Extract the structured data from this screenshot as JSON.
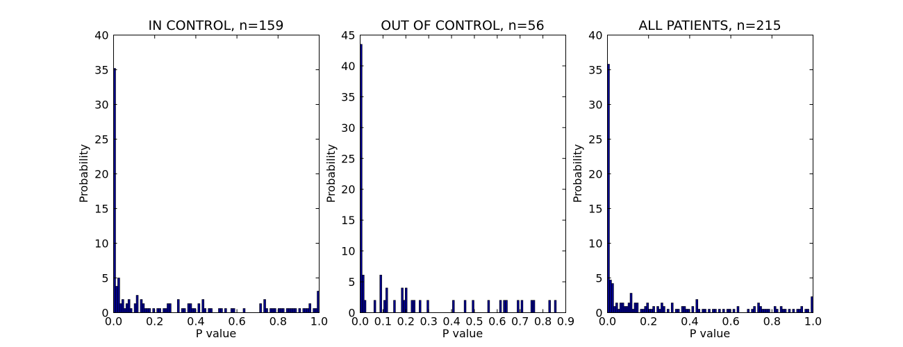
{
  "chart_data": [
    {
      "type": "bar",
      "title": "IN CONTROL, n=159",
      "xlabel": "P value",
      "ylabel": "Probability",
      "xlim": [
        0,
        1.0
      ],
      "ylim": [
        0,
        40
      ],
      "xticks": [
        "0.0",
        "0.2",
        "0.4",
        "0.6",
        "0.8",
        "1.0"
      ],
      "yticks": [
        "0",
        "5",
        "10",
        "15",
        "20",
        "25",
        "30",
        "35",
        "40"
      ],
      "bar_color": "#00008b",
      "bin_width": 0.01,
      "bins": [
        {
          "x": 0.0,
          "y": 35.2
        },
        {
          "x": 0.01,
          "y": 3.8
        },
        {
          "x": 0.02,
          "y": 5.0
        },
        {
          "x": 0.03,
          "y": 1.3
        },
        {
          "x": 0.04,
          "y": 1.9
        },
        {
          "x": 0.05,
          "y": 0.6
        },
        {
          "x": 0.06,
          "y": 1.3
        },
        {
          "x": 0.07,
          "y": 1.9
        },
        {
          "x": 0.08,
          "y": 0.6
        },
        {
          "x": 0.1,
          "y": 1.3
        },
        {
          "x": 0.11,
          "y": 2.5
        },
        {
          "x": 0.13,
          "y": 1.9
        },
        {
          "x": 0.14,
          "y": 1.3
        },
        {
          "x": 0.15,
          "y": 0.6
        },
        {
          "x": 0.16,
          "y": 0.6
        },
        {
          "x": 0.17,
          "y": 0.6
        },
        {
          "x": 0.19,
          "y": 0.6
        },
        {
          "x": 0.21,
          "y": 0.6
        },
        {
          "x": 0.22,
          "y": 0.6
        },
        {
          "x": 0.24,
          "y": 0.6
        },
        {
          "x": 0.25,
          "y": 0.6
        },
        {
          "x": 0.26,
          "y": 1.3
        },
        {
          "x": 0.27,
          "y": 1.3
        },
        {
          "x": 0.31,
          "y": 1.9
        },
        {
          "x": 0.33,
          "y": 0.6
        },
        {
          "x": 0.34,
          "y": 0.6
        },
        {
          "x": 0.36,
          "y": 1.3
        },
        {
          "x": 0.37,
          "y": 1.3
        },
        {
          "x": 0.38,
          "y": 0.6
        },
        {
          "x": 0.39,
          "y": 0.6
        },
        {
          "x": 0.41,
          "y": 1.3
        },
        {
          "x": 0.43,
          "y": 1.9
        },
        {
          "x": 0.44,
          "y": 0.6
        },
        {
          "x": 0.46,
          "y": 0.6
        },
        {
          "x": 0.47,
          "y": 0.6
        },
        {
          "x": 0.51,
          "y": 0.6
        },
        {
          "x": 0.52,
          "y": 0.6
        },
        {
          "x": 0.54,
          "y": 0.6
        },
        {
          "x": 0.57,
          "y": 0.6
        },
        {
          "x": 0.58,
          "y": 0.6
        },
        {
          "x": 0.63,
          "y": 0.6
        },
        {
          "x": 0.71,
          "y": 1.3
        },
        {
          "x": 0.73,
          "y": 1.9
        },
        {
          "x": 0.74,
          "y": 0.6
        },
        {
          "x": 0.76,
          "y": 0.6
        },
        {
          "x": 0.77,
          "y": 0.6
        },
        {
          "x": 0.78,
          "y": 0.6
        },
        {
          "x": 0.8,
          "y": 0.6
        },
        {
          "x": 0.81,
          "y": 0.6
        },
        {
          "x": 0.82,
          "y": 0.6
        },
        {
          "x": 0.84,
          "y": 0.6
        },
        {
          "x": 0.85,
          "y": 0.6
        },
        {
          "x": 0.86,
          "y": 0.6
        },
        {
          "x": 0.87,
          "y": 0.6
        },
        {
          "x": 0.88,
          "y": 0.6
        },
        {
          "x": 0.9,
          "y": 0.6
        },
        {
          "x": 0.92,
          "y": 0.6
        },
        {
          "x": 0.93,
          "y": 0.6
        },
        {
          "x": 0.94,
          "y": 0.6
        },
        {
          "x": 0.95,
          "y": 1.3
        },
        {
          "x": 0.97,
          "y": 0.6
        },
        {
          "x": 0.98,
          "y": 0.6
        },
        {
          "x": 0.99,
          "y": 3.1
        }
      ]
    },
    {
      "type": "bar",
      "title": "OUT OF CONTROL, n=56",
      "xlabel": "P value",
      "ylabel": "Probability",
      "xlim": [
        0,
        0.9
      ],
      "ylim": [
        0,
        45
      ],
      "xticks": [
        "0.0",
        "0.1",
        "0.2",
        "0.3",
        "0.4",
        "0.5",
        "0.6",
        "0.7",
        "0.8",
        "0.9"
      ],
      "yticks": [
        "0",
        "5",
        "10",
        "15",
        "20",
        "25",
        "30",
        "35",
        "40",
        "45"
      ],
      "bar_color": "#00008b",
      "bin_width": 0.0086,
      "bins": [
        {
          "x": 0.0,
          "y": 43.5
        },
        {
          "x": 0.009,
          "y": 6.1
        },
        {
          "x": 0.017,
          "y": 2.0
        },
        {
          "x": 0.06,
          "y": 2.0
        },
        {
          "x": 0.086,
          "y": 6.1
        },
        {
          "x": 0.103,
          "y": 2.0
        },
        {
          "x": 0.112,
          "y": 4.0
        },
        {
          "x": 0.146,
          "y": 2.0
        },
        {
          "x": 0.18,
          "y": 4.0
        },
        {
          "x": 0.189,
          "y": 2.0
        },
        {
          "x": 0.197,
          "y": 4.0
        },
        {
          "x": 0.223,
          "y": 2.0
        },
        {
          "x": 0.232,
          "y": 2.0
        },
        {
          "x": 0.258,
          "y": 2.0
        },
        {
          "x": 0.292,
          "y": 2.0
        },
        {
          "x": 0.404,
          "y": 2.0
        },
        {
          "x": 0.455,
          "y": 2.0
        },
        {
          "x": 0.49,
          "y": 2.0
        },
        {
          "x": 0.558,
          "y": 2.0
        },
        {
          "x": 0.61,
          "y": 2.0
        },
        {
          "x": 0.627,
          "y": 2.0
        },
        {
          "x": 0.636,
          "y": 2.0
        },
        {
          "x": 0.687,
          "y": 2.0
        },
        {
          "x": 0.704,
          "y": 2.0
        },
        {
          "x": 0.747,
          "y": 2.0
        },
        {
          "x": 0.756,
          "y": 2.0
        },
        {
          "x": 0.825,
          "y": 2.0
        },
        {
          "x": 0.85,
          "y": 2.0
        }
      ]
    },
    {
      "type": "bar",
      "title": "ALL PATIENTS, n=215",
      "xlabel": "P value",
      "ylabel": "Probability",
      "xlim": [
        0,
        1.0
      ],
      "ylim": [
        0,
        40
      ],
      "xticks": [
        "0.0",
        "0.2",
        "0.4",
        "0.6",
        "0.8",
        "1.0"
      ],
      "yticks": [
        "0",
        "5",
        "10",
        "15",
        "20",
        "25",
        "30",
        "35",
        "40"
      ],
      "bar_color": "#00008b",
      "bin_width": 0.01,
      "bins": [
        {
          "x": 0.0,
          "y": 35.8
        },
        {
          "x": 0.01,
          "y": 4.7
        },
        {
          "x": 0.02,
          "y": 4.2
        },
        {
          "x": 0.03,
          "y": 0.9
        },
        {
          "x": 0.04,
          "y": 1.4
        },
        {
          "x": 0.05,
          "y": 0.5
        },
        {
          "x": 0.06,
          "y": 1.4
        },
        {
          "x": 0.07,
          "y": 1.4
        },
        {
          "x": 0.08,
          "y": 0.9
        },
        {
          "x": 0.09,
          "y": 0.9
        },
        {
          "x": 0.1,
          "y": 1.4
        },
        {
          "x": 0.11,
          "y": 2.8
        },
        {
          "x": 0.12,
          "y": 0.5
        },
        {
          "x": 0.13,
          "y": 1.4
        },
        {
          "x": 0.14,
          "y": 1.4
        },
        {
          "x": 0.16,
          "y": 0.5
        },
        {
          "x": 0.17,
          "y": 0.5
        },
        {
          "x": 0.18,
          "y": 0.9
        },
        {
          "x": 0.19,
          "y": 1.4
        },
        {
          "x": 0.2,
          "y": 0.5
        },
        {
          "x": 0.21,
          "y": 0.5
        },
        {
          "x": 0.22,
          "y": 0.9
        },
        {
          "x": 0.24,
          "y": 0.9
        },
        {
          "x": 0.25,
          "y": 0.5
        },
        {
          "x": 0.26,
          "y": 1.4
        },
        {
          "x": 0.27,
          "y": 0.9
        },
        {
          "x": 0.29,
          "y": 0.5
        },
        {
          "x": 0.31,
          "y": 1.4
        },
        {
          "x": 0.33,
          "y": 0.5
        },
        {
          "x": 0.34,
          "y": 0.5
        },
        {
          "x": 0.36,
          "y": 0.9
        },
        {
          "x": 0.37,
          "y": 0.9
        },
        {
          "x": 0.38,
          "y": 0.5
        },
        {
          "x": 0.39,
          "y": 0.5
        },
        {
          "x": 0.41,
          "y": 0.9
        },
        {
          "x": 0.43,
          "y": 1.9
        },
        {
          "x": 0.44,
          "y": 0.5
        },
        {
          "x": 0.46,
          "y": 0.5
        },
        {
          "x": 0.47,
          "y": 0.5
        },
        {
          "x": 0.49,
          "y": 0.5
        },
        {
          "x": 0.51,
          "y": 0.5
        },
        {
          "x": 0.52,
          "y": 0.5
        },
        {
          "x": 0.54,
          "y": 0.5
        },
        {
          "x": 0.56,
          "y": 0.5
        },
        {
          "x": 0.58,
          "y": 0.5
        },
        {
          "x": 0.59,
          "y": 0.5
        },
        {
          "x": 0.61,
          "y": 0.5
        },
        {
          "x": 0.63,
          "y": 0.9
        },
        {
          "x": 0.68,
          "y": 0.5
        },
        {
          "x": 0.7,
          "y": 0.5
        },
        {
          "x": 0.71,
          "y": 0.9
        },
        {
          "x": 0.73,
          "y": 1.4
        },
        {
          "x": 0.74,
          "y": 0.9
        },
        {
          "x": 0.75,
          "y": 0.5
        },
        {
          "x": 0.76,
          "y": 0.5
        },
        {
          "x": 0.77,
          "y": 0.5
        },
        {
          "x": 0.78,
          "y": 0.5
        },
        {
          "x": 0.81,
          "y": 0.9
        },
        {
          "x": 0.82,
          "y": 0.5
        },
        {
          "x": 0.84,
          "y": 0.9
        },
        {
          "x": 0.85,
          "y": 0.5
        },
        {
          "x": 0.86,
          "y": 0.5
        },
        {
          "x": 0.88,
          "y": 0.5
        },
        {
          "x": 0.9,
          "y": 0.5
        },
        {
          "x": 0.92,
          "y": 0.5
        },
        {
          "x": 0.93,
          "y": 0.5
        },
        {
          "x": 0.94,
          "y": 0.9
        },
        {
          "x": 0.96,
          "y": 0.5
        },
        {
          "x": 0.97,
          "y": 0.5
        },
        {
          "x": 0.99,
          "y": 2.3
        }
      ]
    }
  ]
}
